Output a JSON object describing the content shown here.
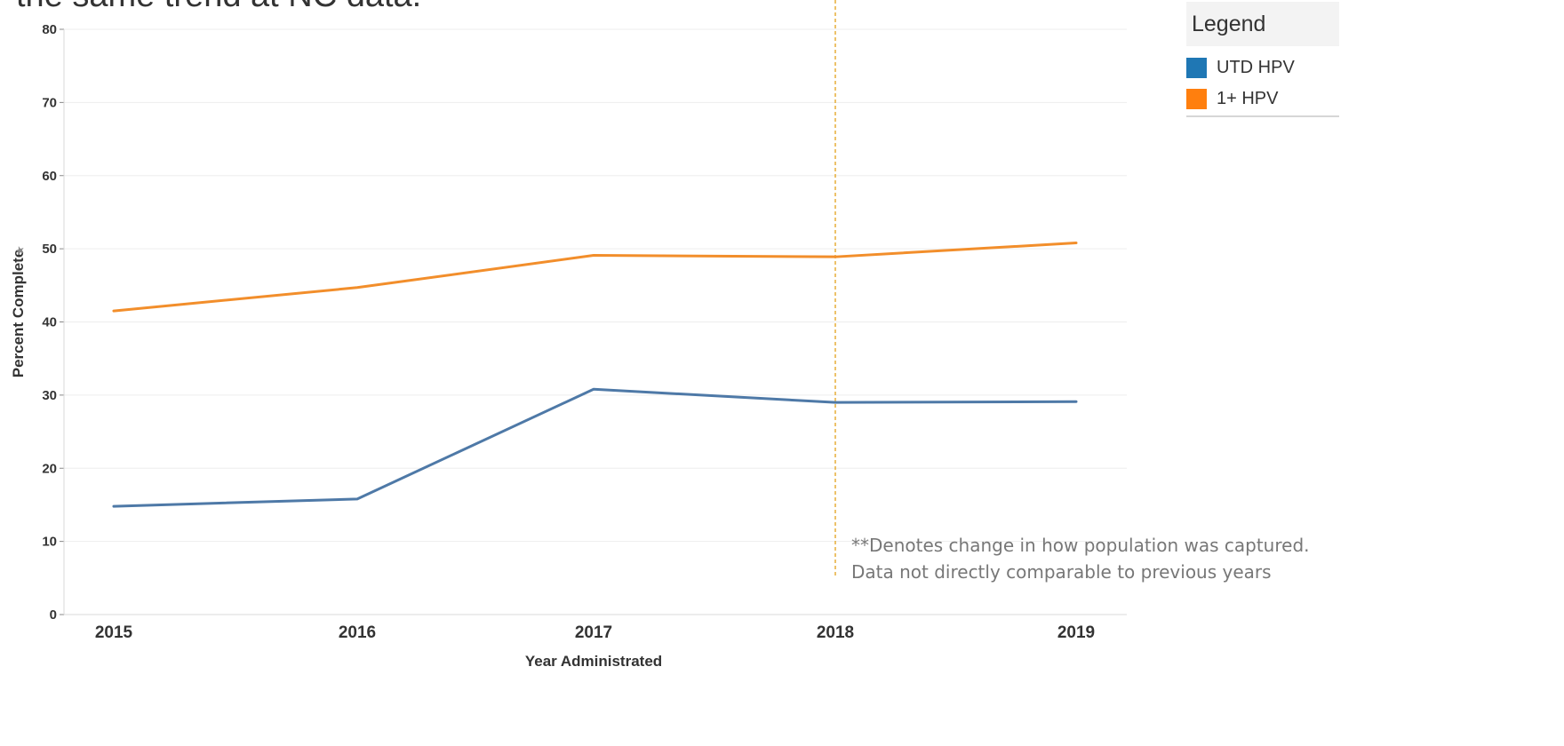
{
  "header": {
    "clipped_text": "the same trend at NC data."
  },
  "chart_data": {
    "type": "line",
    "x": [
      "2015",
      "2016",
      "2017",
      "2018",
      "2019"
    ],
    "xlabel": "Year Administrated",
    "ylabel": "Percent Complete",
    "ylim": [
      0,
      80
    ],
    "yticks": [
      "0",
      "10",
      "20",
      "30",
      "40",
      "50",
      "60",
      "70",
      "80"
    ],
    "grid": true,
    "series": [
      {
        "name": "UTD HPV",
        "values": [
          14.8,
          15.8,
          30.8,
          29.0,
          29.1
        ],
        "color": "#4e79a7"
      },
      {
        "name": "1+ HPV",
        "values": [
          41.5,
          44.7,
          49.1,
          48.9,
          50.8
        ],
        "color": "#f28e2b"
      }
    ],
    "reference_line": {
      "x": "2018",
      "color": "#e3a21a",
      "style": "dashed"
    }
  },
  "legend": {
    "title": "Legend",
    "position": "top-right",
    "items": [
      {
        "label": "UTD HPV",
        "color": "#1f77b4"
      },
      {
        "label": "1+ HPV",
        "color": "#ff7f0e"
      }
    ]
  },
  "note": {
    "line1": "**Denotes change in how population was captured.",
    "line2": "Data not directly comparable to previous years"
  }
}
